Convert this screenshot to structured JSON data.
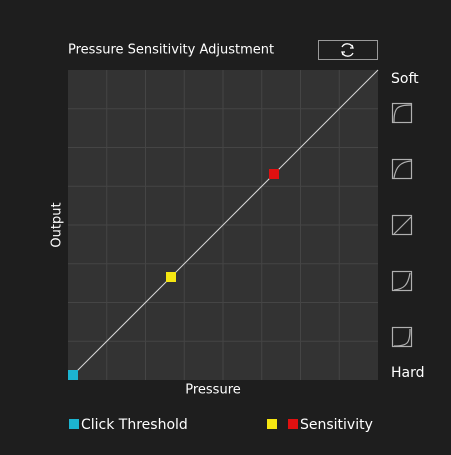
{
  "header": {
    "title": "Pressure Sensitivity Adjustment"
  },
  "graph": {
    "x_label": "Pressure",
    "y_label": "Output",
    "top_label": "Soft",
    "bottom_label": "Hard"
  },
  "legend": {
    "items": [
      "Click Threshold",
      "Sensitivity"
    ]
  }
}
